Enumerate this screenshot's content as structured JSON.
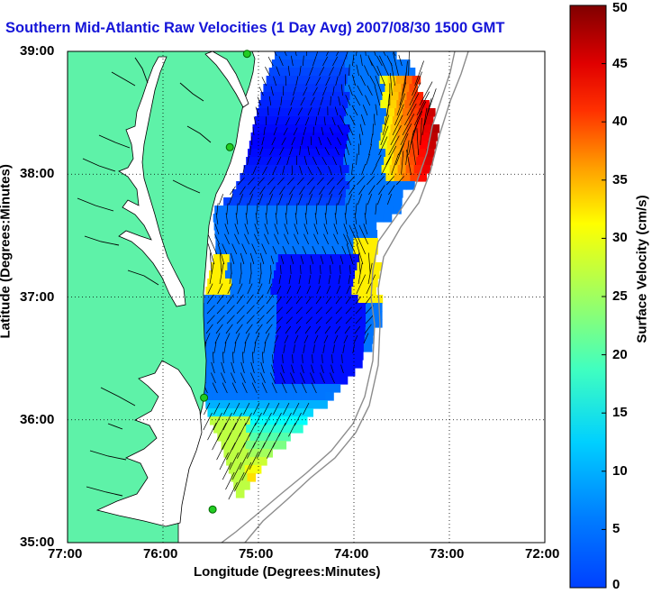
{
  "title": "Southern Mid-Atlantic Raw Velocities (1 Day Avg) 2007/08/30 1500 GMT",
  "map": {
    "xlabel": "Longitude (Degrees:Minutes)",
    "ylabel": "Latitude (Degrees:Minutes)",
    "xticks": [
      "77:00",
      "76:00",
      "75:00",
      "74:00",
      "73:00",
      "72:00"
    ],
    "yticks": [
      "39:00",
      "38:00",
      "37:00",
      "36:00",
      "35:00"
    ],
    "lon_range": [
      -77,
      -72
    ],
    "lat_range": [
      35,
      39
    ],
    "land_color": "#5ef2a8",
    "grid": "dotted"
  },
  "colorbar": {
    "label": "Surface Velocity (cm/s)",
    "ticks": [
      "0",
      "5",
      "10",
      "15",
      "20",
      "25",
      "30",
      "35",
      "40",
      "45",
      "50"
    ],
    "range": [
      0,
      50
    ],
    "colormap": "jet"
  },
  "stations": [
    {
      "lon": -75.12,
      "lat": 38.98
    },
    {
      "lon": -75.3,
      "lat": 38.22
    },
    {
      "lon": -75.57,
      "lat": 36.18
    },
    {
      "lon": -75.48,
      "lat": 35.27
    }
  ]
}
